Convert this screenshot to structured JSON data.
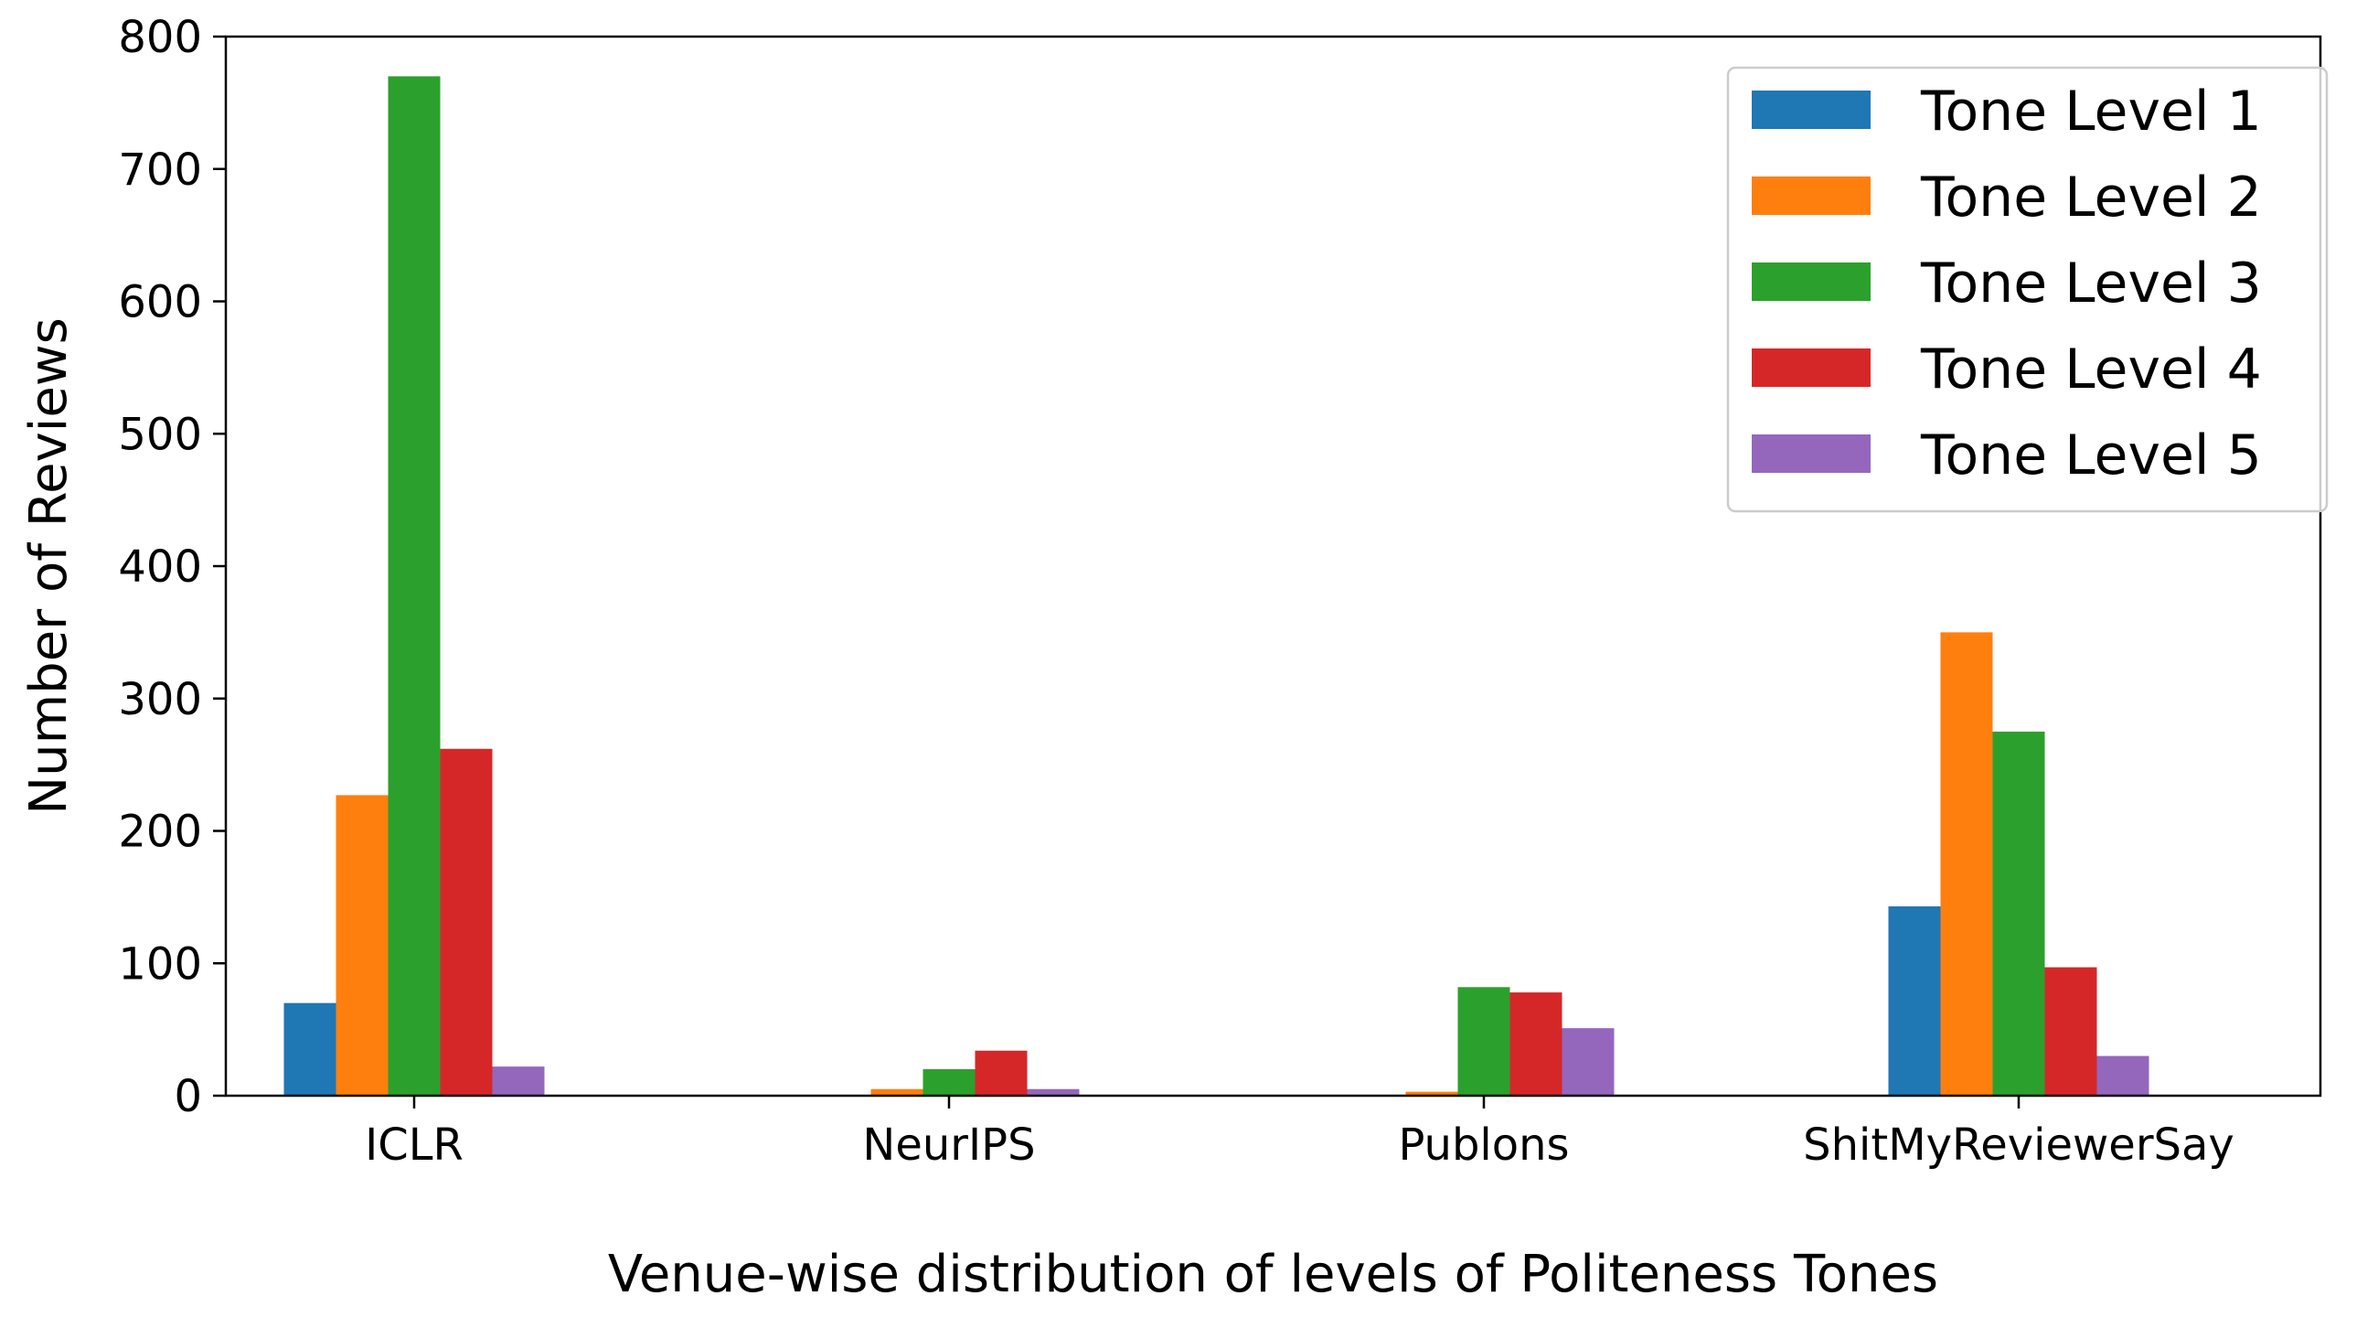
{
  "chart_data": {
    "type": "bar",
    "title": "",
    "xlabel": "Venue-wise distribution of levels of Politeness Tones",
    "ylabel": "Number of Reviews",
    "ylim": [
      0,
      800
    ],
    "yticks": [
      0,
      100,
      200,
      300,
      400,
      500,
      600,
      700,
      800
    ],
    "grid": false,
    "legend_position": "top-right",
    "categories": [
      "ICLR",
      "NeurIPS",
      "Publons",
      "ShitMyReviewerSay"
    ],
    "series": [
      {
        "name": "Tone Level 1",
        "color": "#1f77b4",
        "values": [
          70,
          0,
          0,
          143
        ]
      },
      {
        "name": "Tone Level 2",
        "color": "#ff7f0e",
        "values": [
          227,
          5,
          3,
          350
        ]
      },
      {
        "name": "Tone Level 3",
        "color": "#2ca02c",
        "values": [
          770,
          20,
          82,
          275
        ]
      },
      {
        "name": "Tone Level 4",
        "color": "#d62728",
        "values": [
          262,
          34,
          78,
          97
        ]
      },
      {
        "name": "Tone Level 5",
        "color": "#9467bd",
        "values": [
          22,
          5,
          51,
          30
        ]
      }
    ]
  }
}
